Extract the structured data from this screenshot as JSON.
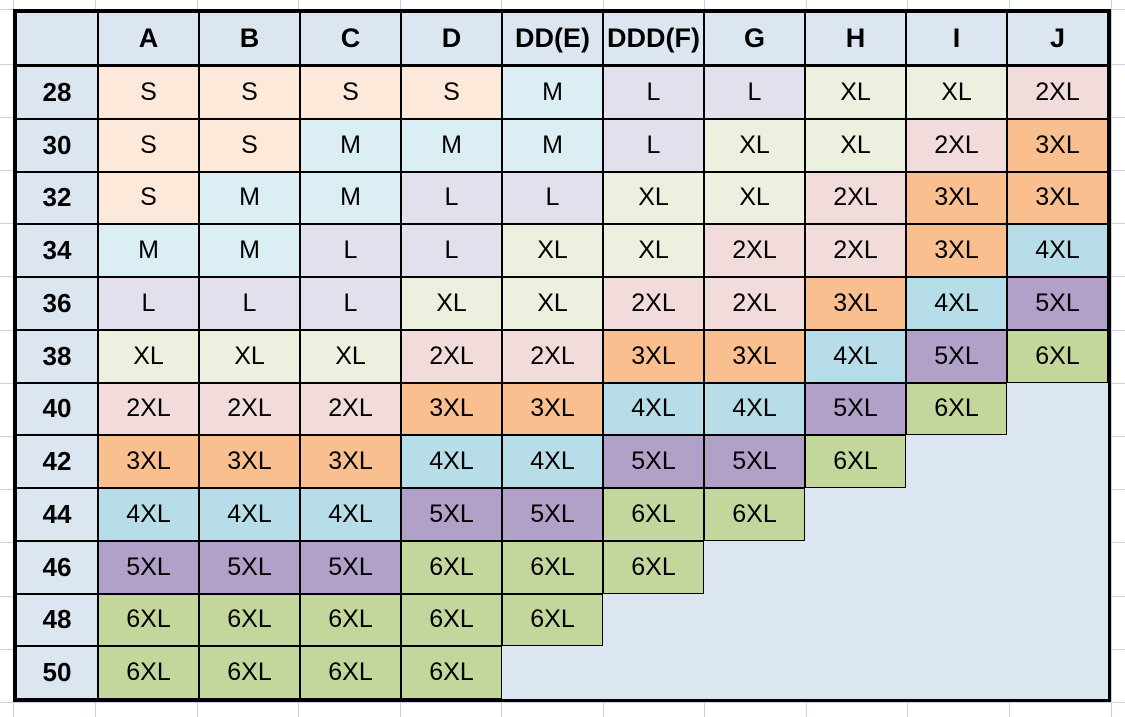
{
  "chart_data": {
    "type": "table",
    "title": "",
    "corner_label": "",
    "columns": [
      "A",
      "B",
      "C",
      "D",
      "DD(E)",
      "DDD(F)",
      "G",
      "H",
      "I",
      "J"
    ],
    "row_header_values": [
      "28",
      "30",
      "32",
      "34",
      "36",
      "38",
      "40",
      "42",
      "44",
      "46",
      "48",
      "50"
    ],
    "rows": [
      {
        "band": "28",
        "cells": [
          "S",
          "S",
          "S",
          "S",
          "M",
          "L",
          "L",
          "XL",
          "XL",
          "2XL"
        ]
      },
      {
        "band": "30",
        "cells": [
          "S",
          "S",
          "M",
          "M",
          "M",
          "L",
          "XL",
          "XL",
          "2XL",
          "3XL"
        ]
      },
      {
        "band": "32",
        "cells": [
          "S",
          "M",
          "M",
          "L",
          "L",
          "XL",
          "XL",
          "2XL",
          "3XL",
          "3XL"
        ]
      },
      {
        "band": "34",
        "cells": [
          "M",
          "M",
          "L",
          "L",
          "XL",
          "XL",
          "2XL",
          "2XL",
          "3XL",
          "4XL"
        ]
      },
      {
        "band": "36",
        "cells": [
          "L",
          "L",
          "L",
          "XL",
          "XL",
          "2XL",
          "2XL",
          "3XL",
          "4XL",
          "5XL"
        ]
      },
      {
        "band": "38",
        "cells": [
          "XL",
          "XL",
          "XL",
          "2XL",
          "2XL",
          "3XL",
          "3XL",
          "4XL",
          "5XL",
          "6XL"
        ]
      },
      {
        "band": "40",
        "cells": [
          "2XL",
          "2XL",
          "2XL",
          "3XL",
          "3XL",
          "4XL",
          "4XL",
          "5XL",
          "6XL",
          ""
        ]
      },
      {
        "band": "42",
        "cells": [
          "3XL",
          "3XL",
          "3XL",
          "4XL",
          "4XL",
          "5XL",
          "5XL",
          "6XL",
          "",
          ""
        ]
      },
      {
        "band": "44",
        "cells": [
          "4XL",
          "4XL",
          "4XL",
          "5XL",
          "5XL",
          "6XL",
          "6XL",
          "",
          "",
          ""
        ]
      },
      {
        "band": "46",
        "cells": [
          "5XL",
          "5XL",
          "5XL",
          "6XL",
          "6XL",
          "6XL",
          "",
          "",
          "",
          ""
        ]
      },
      {
        "band": "48",
        "cells": [
          "6XL",
          "6XL",
          "6XL",
          "6XL",
          "6XL",
          "",
          "",
          "",
          "",
          ""
        ]
      },
      {
        "band": "50",
        "cells": [
          "6XL",
          "6XL",
          "6XL",
          "6XL",
          "",
          "",
          "",
          "",
          "",
          ""
        ]
      }
    ],
    "cell_colors": {
      "S": "#FDE9D9",
      "M": "#DAEEF3",
      "L": "#E4DFEC",
      "XL": "#EBF1DE",
      "2XL": "#F2DCDB",
      "3XL": "#FABF8F",
      "4XL": "#B7DEE8",
      "5XL": "#B1A0C7",
      "6XL": "#C3D69B"
    },
    "header_bg": "#DCE6F1",
    "empty_bg": "#DCE6F1",
    "border_color": "#000000",
    "gridline_color": "#C9D1E0"
  }
}
